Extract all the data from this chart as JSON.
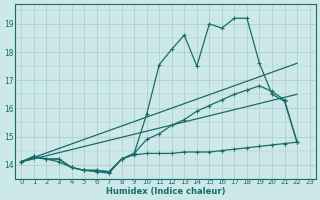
{
  "xlabel": "Humidex (Indice chaleur)",
  "bg_color": "#cde8e8",
  "grid_color": "#aacccc",
  "line_color": "#1a6b6b",
  "xlim": [
    -0.5,
    23.5
  ],
  "ylim": [
    13.5,
    19.7
  ],
  "x_ticks": [
    0,
    1,
    2,
    3,
    4,
    5,
    6,
    7,
    8,
    9,
    10,
    11,
    12,
    13,
    14,
    15,
    16,
    17,
    18,
    19,
    20,
    21,
    22,
    23
  ],
  "y_ticks": [
    14,
    15,
    16,
    17,
    18,
    19
  ],
  "series_max_x": [
    0,
    1,
    2,
    3,
    4,
    5,
    6,
    7,
    8,
    9,
    10,
    11,
    12,
    13,
    14,
    15,
    16,
    17,
    18,
    19,
    20,
    21,
    22
  ],
  "series_max_y": [
    14.1,
    14.3,
    14.2,
    14.2,
    13.9,
    13.8,
    13.8,
    13.75,
    14.2,
    14.4,
    15.8,
    17.55,
    18.1,
    18.6,
    17.5,
    19.0,
    18.85,
    19.2,
    19.2,
    17.6,
    16.5,
    16.25,
    14.8
  ],
  "series_avg_x": [
    0,
    1,
    2,
    3,
    4,
    5,
    6,
    7,
    8,
    9,
    10,
    11,
    12,
    13,
    14,
    15,
    16,
    17,
    18,
    19,
    20,
    21,
    22
  ],
  "series_avg_y": [
    14.1,
    14.3,
    14.2,
    14.2,
    13.9,
    13.8,
    13.8,
    13.75,
    14.2,
    14.4,
    14.9,
    15.1,
    15.4,
    15.6,
    15.9,
    16.1,
    16.3,
    16.5,
    16.65,
    16.8,
    16.6,
    16.3,
    14.8
  ],
  "series_min_x": [
    0,
    1,
    2,
    3,
    4,
    5,
    6,
    7,
    8,
    9,
    10,
    11,
    12,
    13,
    14,
    15,
    16,
    17,
    18,
    19,
    20,
    21,
    22
  ],
  "series_min_y": [
    14.1,
    14.25,
    14.2,
    14.1,
    13.9,
    13.8,
    13.75,
    13.7,
    14.2,
    14.35,
    14.4,
    14.4,
    14.4,
    14.45,
    14.45,
    14.45,
    14.5,
    14.55,
    14.6,
    14.65,
    14.7,
    14.75,
    14.8
  ],
  "trend1_x": [
    0,
    22
  ],
  "trend1_y": [
    14.1,
    17.6
  ],
  "trend2_x": [
    0,
    22
  ],
  "trend2_y": [
    14.1,
    16.5
  ]
}
